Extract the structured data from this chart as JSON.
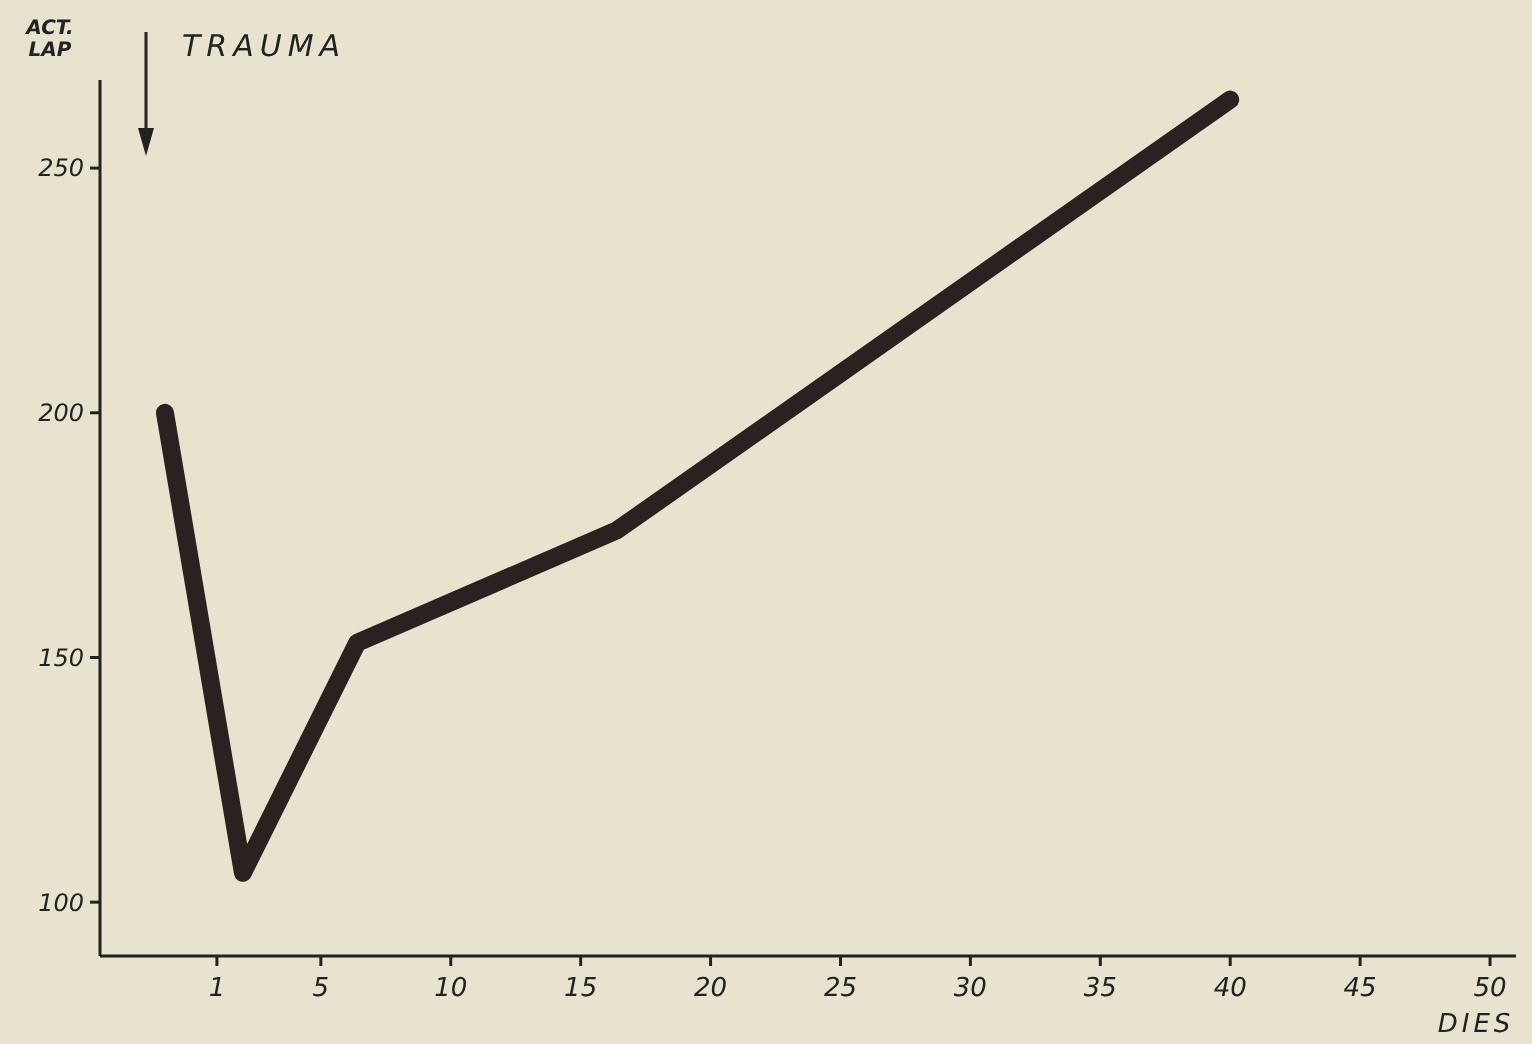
{
  "chart_data": {
    "type": "line",
    "xlabel": "DIES",
    "ylabel": "ACT. LAP",
    "x": [
      -1,
      2,
      6.4,
      16.4,
      40
    ],
    "series": [
      {
        "color": "#2a2220",
        "values": [
          200,
          106,
          153,
          176,
          264
        ]
      }
    ],
    "xlim": [
      -3.5,
      51
    ],
    "xticks": [
      1,
      5,
      10,
      15,
      20,
      25,
      30,
      35,
      40,
      45,
      50
    ],
    "ylim": [
      89,
      268
    ],
    "yticks": [
      100,
      150,
      200,
      250
    ],
    "grid": false,
    "marker": "none",
    "line_style": "solid",
    "annotations": [
      "TRAUMA"
    ]
  }
}
